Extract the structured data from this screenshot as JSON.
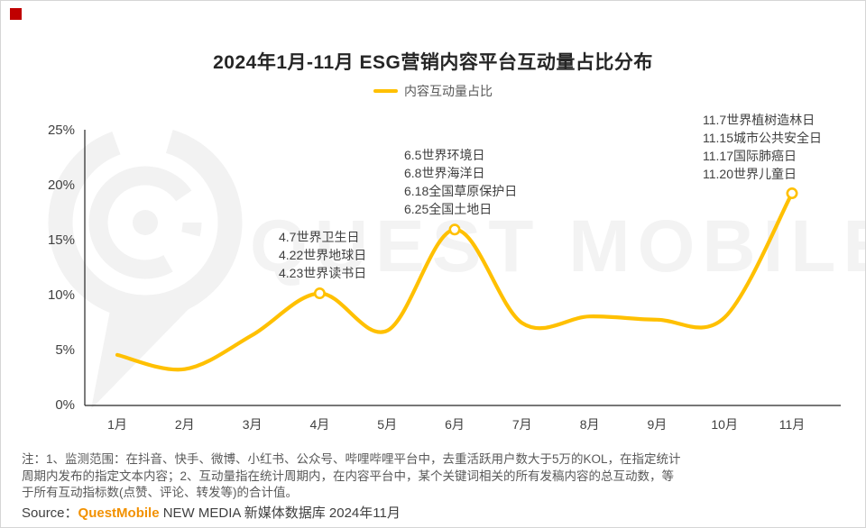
{
  "page": {
    "title": "2024年1月-11月 ESG营销内容平台互动量占比分布",
    "legend_label": "内容互动量占比",
    "watermark_text": "QUEST MOBILE"
  },
  "colors": {
    "line": "#FFC000",
    "marker_fill": "#FFFFFF",
    "axis": "#262626",
    "brand_orange": "#F29100",
    "brand_red": "#C00000",
    "watermark": "#F3F3F3"
  },
  "chart_data": {
    "type": "line",
    "title": "2024年1月-11月 ESG营销内容平台互动量占比分布",
    "legend": [
      "内容互动量占比"
    ],
    "legend_position": "top",
    "grid": false,
    "unit": "%",
    "ylim": [
      0,
      25
    ],
    "y_ticks": [
      "0%",
      "5%",
      "10%",
      "15%",
      "20%",
      "25%"
    ],
    "y_tick_values": [
      0,
      5,
      10,
      15,
      20,
      25
    ],
    "categories": [
      "1月",
      "2月",
      "3月",
      "4月",
      "5月",
      "6月",
      "7月",
      "8月",
      "9月",
      "10月",
      "11月"
    ],
    "series": [
      {
        "name": "内容互动量占比",
        "values": [
          4.6,
          3.3,
          6.4,
          10.2,
          6.8,
          16.0,
          7.5,
          8.1,
          7.8,
          8.0,
          19.3
        ]
      }
    ],
    "marker_point_indices": [
      3,
      5,
      10
    ],
    "annotations": [
      {
        "id": "april",
        "lines": [
          "4.7世界卫生日",
          "4.22世界地球日",
          "4.23世界读书日"
        ]
      },
      {
        "id": "june",
        "lines": [
          "6.5世界环境日",
          "6.8世界海洋日",
          "6.18全国草原保护日",
          "6.25全国土地日"
        ]
      },
      {
        "id": "november",
        "lines": [
          "11.7世界植树造林日",
          "11.15城市公共安全日",
          "11.17国际肺癌日",
          "11.20世界儿童日"
        ]
      }
    ]
  },
  "footer": {
    "note_lines": [
      "注：1、监测范围：在抖音、快手、微博、小红书、公众号、哔哩哔哩平台中，去重活跃用户数大于5万的KOL，在指定统计",
      "周期内发布的指定文本内容；2、互动量指在统计周期内，在内容平台中，某个关键词相关的所有发稿内容的总互动数，等",
      "于所有互动指标数(点赞、评论、转发等)的合计值。"
    ],
    "source_prefix": "Source：",
    "source_brand": "QuestMobile",
    "source_rest": " NEW MEDIA 新媒体数据库 2024年11月"
  }
}
